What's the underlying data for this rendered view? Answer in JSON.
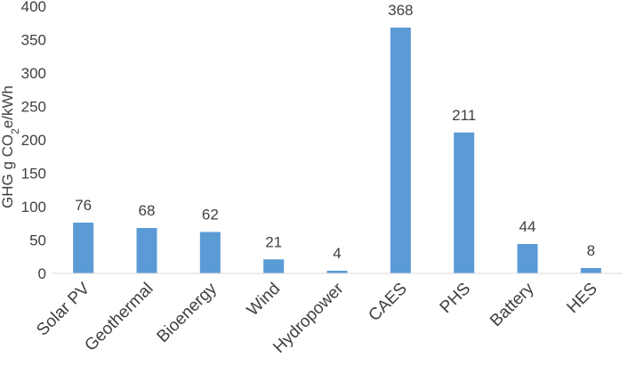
{
  "chart_data": {
    "type": "bar",
    "title": "",
    "xlabel": "",
    "ylabel": {
      "prefix": "GHG g CO",
      "subscript": "2",
      "suffix": "e/kWh"
    },
    "ylim": [
      0,
      400
    ],
    "yticks": [
      0,
      50,
      100,
      150,
      200,
      250,
      300,
      350,
      400
    ],
    "grid": false,
    "legend": "none",
    "bar_color": "#5b9bd5",
    "categories": [
      "Solar PV",
      "Geothermal",
      "Bioenergy",
      "Wind",
      "Hydropower",
      "CAES",
      "PHS",
      "Battery",
      "HES"
    ],
    "values": [
      76,
      68,
      62,
      21,
      4,
      368,
      211,
      44,
      8
    ]
  }
}
